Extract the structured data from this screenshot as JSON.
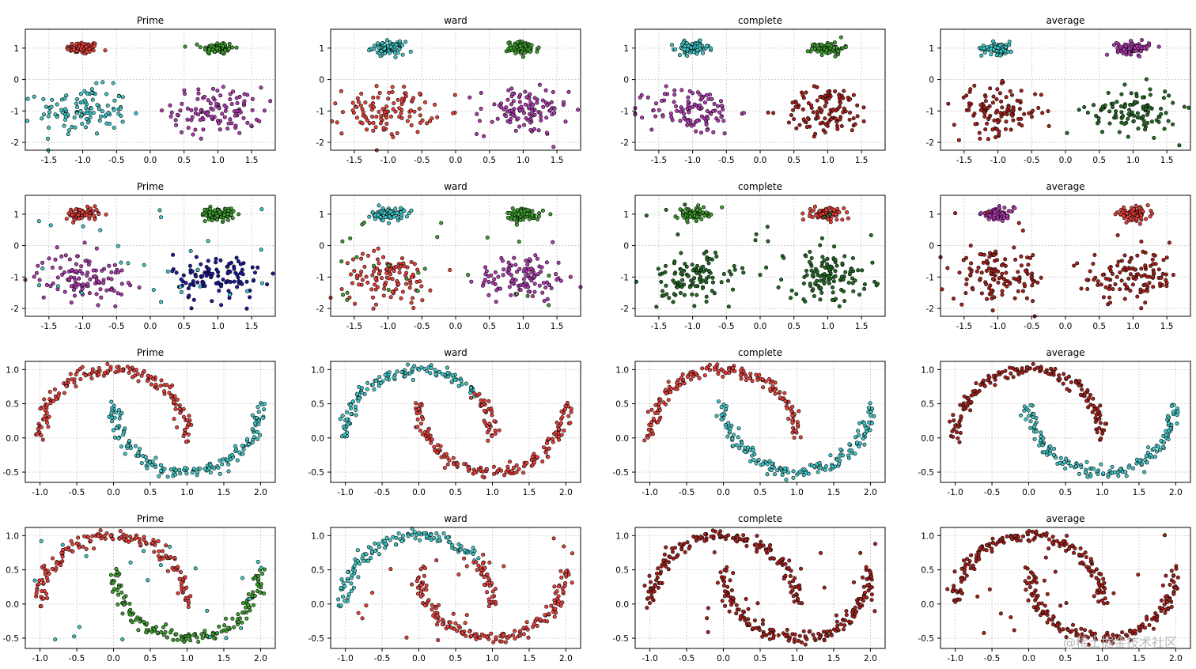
{
  "colors": {
    "red": "#e8403a",
    "green": "#3fa02f",
    "cyan": "#3fc7c7",
    "purple": "#b23ab2",
    "navy": "#1a1a9c",
    "darkred": "#a8201a",
    "darkgreen": "#236b23"
  },
  "watermark": "@稀土掘金技术社区",
  "chart_data": [
    {
      "type": "scatter",
      "title": "Prime",
      "dataset": "blobs",
      "noise": false,
      "xlim": [
        -1.85,
        1.85
      ],
      "ylim": [
        -2.25,
        1.6
      ],
      "xticks": [
        "-1.5",
        "-1.0",
        "-0.5",
        "0.0",
        "0.5",
        "1.0",
        "1.5"
      ],
      "yticks": [
        "1",
        "0",
        "-1",
        "-2"
      ],
      "grid": true,
      "clusters": [
        {
          "center": [
            -1.0,
            1.0
          ],
          "color": "red"
        },
        {
          "center": [
            1.0,
            1.0
          ],
          "color": "green"
        },
        {
          "center": [
            -1.0,
            -1.0
          ],
          "color": "cyan"
        },
        {
          "center": [
            1.0,
            -1.0
          ],
          "color": "purple"
        }
      ]
    },
    {
      "type": "scatter",
      "title": "ward",
      "dataset": "blobs",
      "noise": false,
      "xlim": [
        -1.85,
        1.85
      ],
      "ylim": [
        -2.25,
        1.6
      ],
      "xticks": [
        "-1.5",
        "-1.0",
        "-0.5",
        "0.0",
        "0.5",
        "1.0",
        "1.5"
      ],
      "yticks": [
        "1",
        "0",
        "-1",
        "-2"
      ],
      "grid": true,
      "clusters": [
        {
          "center": [
            -1.0,
            1.0
          ],
          "color": "cyan"
        },
        {
          "center": [
            1.0,
            1.0
          ],
          "color": "green"
        },
        {
          "center": [
            -1.0,
            -1.0
          ],
          "color": "red"
        },
        {
          "center": [
            1.0,
            -1.0
          ],
          "color": "purple"
        }
      ]
    },
    {
      "type": "scatter",
      "title": "complete",
      "dataset": "blobs",
      "noise": false,
      "xlim": [
        -1.85,
        1.85
      ],
      "ylim": [
        -2.25,
        1.6
      ],
      "xticks": [
        "-1.5",
        "-1.0",
        "-0.5",
        "0.0",
        "0.5",
        "1.0",
        "1.5"
      ],
      "yticks": [
        "1",
        "0",
        "-1",
        "-2"
      ],
      "grid": true,
      "clusters": [
        {
          "center": [
            -1.0,
            1.0
          ],
          "color": "cyan"
        },
        {
          "center": [
            1.0,
            1.0
          ],
          "color": "green"
        },
        {
          "center": [
            -1.0,
            -1.0
          ],
          "color": "purple"
        },
        {
          "center": [
            1.0,
            -1.0
          ],
          "color": "darkred"
        }
      ]
    },
    {
      "type": "scatter",
      "title": "average",
      "dataset": "blobs",
      "noise": false,
      "xlim": [
        -1.85,
        1.85
      ],
      "ylim": [
        -2.25,
        1.6
      ],
      "xticks": [
        "-1.5",
        "-1.0",
        "-0.5",
        "0.0",
        "0.5",
        "1.0",
        "1.5"
      ],
      "yticks": [
        "1",
        "0",
        "-1",
        "-2"
      ],
      "grid": true,
      "clusters": [
        {
          "center": [
            -1.0,
            1.0
          ],
          "color": "cyan"
        },
        {
          "center": [
            1.0,
            1.0
          ],
          "color": "purple"
        },
        {
          "center": [
            -1.0,
            -1.0
          ],
          "color": "darkred"
        },
        {
          "center": [
            1.0,
            -1.0
          ],
          "color": "darkgreen"
        }
      ]
    },
    {
      "type": "scatter",
      "title": "Prime",
      "dataset": "blobs",
      "noise": true,
      "noise_color": "cyan",
      "xlim": [
        -1.85,
        1.85
      ],
      "ylim": [
        -2.25,
        1.6
      ],
      "xticks": [
        "-1.5",
        "-1.0",
        "-0.5",
        "0.0",
        "0.5",
        "1.0",
        "1.5"
      ],
      "yticks": [
        "1",
        "0",
        "-1",
        "-2"
      ],
      "grid": true,
      "clusters": [
        {
          "center": [
            -1.0,
            1.0
          ],
          "color": "red"
        },
        {
          "center": [
            1.0,
            1.0
          ],
          "color": "green"
        },
        {
          "center": [
            -1.0,
            -1.0
          ],
          "color": "purple"
        },
        {
          "center": [
            1.0,
            -1.0
          ],
          "color": "navy"
        }
      ]
    },
    {
      "type": "scatter",
      "title": "ward",
      "dataset": "blobs",
      "noise": true,
      "noise_color": "green",
      "xlim": [
        -1.85,
        1.85
      ],
      "ylim": [
        -2.25,
        1.6
      ],
      "xticks": [
        "-1.5",
        "-1.0",
        "-0.5",
        "0.0",
        "0.5",
        "1.0",
        "1.5"
      ],
      "yticks": [
        "1",
        "0",
        "-1",
        "-2"
      ],
      "grid": true,
      "clusters": [
        {
          "center": [
            -1.0,
            1.0
          ],
          "color": "cyan"
        },
        {
          "center": [
            1.0,
            1.0
          ],
          "color": "green"
        },
        {
          "center": [
            -1.0,
            -1.0
          ],
          "color": "red"
        },
        {
          "center": [
            1.0,
            -1.0
          ],
          "color": "purple"
        }
      ]
    },
    {
      "type": "scatter",
      "title": "complete",
      "dataset": "blobs",
      "noise": true,
      "noise_color": "darkgreen",
      "xlim": [
        -1.85,
        1.85
      ],
      "ylim": [
        -2.25,
        1.6
      ],
      "xticks": [
        "-1.5",
        "-1.0",
        "-0.5",
        "0.0",
        "0.5",
        "1.0",
        "1.5"
      ],
      "yticks": [
        "1",
        "0",
        "-1",
        "-2"
      ],
      "grid": true,
      "clusters": [
        {
          "center": [
            -1.0,
            1.0
          ],
          "color": "green"
        },
        {
          "center": [
            1.0,
            1.0
          ],
          "color": "red"
        },
        {
          "center": [
            -1.0,
            -1.0
          ],
          "color": "darkgreen"
        },
        {
          "center": [
            1.0,
            -1.0
          ],
          "color": "darkgreen"
        }
      ]
    },
    {
      "type": "scatter",
      "title": "average",
      "dataset": "blobs",
      "noise": true,
      "noise_color": "darkred",
      "xlim": [
        -1.85,
        1.85
      ],
      "ylim": [
        -2.25,
        1.6
      ],
      "xticks": [
        "-1.5",
        "-1.0",
        "-0.5",
        "0.0",
        "0.5",
        "1.0",
        "1.5"
      ],
      "yticks": [
        "1",
        "0",
        "-1",
        "-2"
      ],
      "grid": true,
      "clusters": [
        {
          "center": [
            -1.0,
            1.0
          ],
          "color": "purple"
        },
        {
          "center": [
            1.0,
            1.0
          ],
          "color": "red"
        },
        {
          "center": [
            -1.0,
            -1.0
          ],
          "color": "darkred"
        },
        {
          "center": [
            1.0,
            -1.0
          ],
          "color": "darkred"
        }
      ]
    },
    {
      "type": "scatter",
      "title": "Prime",
      "dataset": "moons",
      "noise": false,
      "xlim": [
        -1.2,
        2.2
      ],
      "ylim": [
        -0.65,
        1.12
      ],
      "xticks": [
        "-1.0",
        "-0.5",
        "0.0",
        "0.5",
        "1.0",
        "1.5",
        "2.0"
      ],
      "yticks": [
        "1.0",
        "0.5",
        "0.0",
        "-0.5"
      ],
      "grid": true,
      "moons": [
        {
          "moon": "upper",
          "color": "red"
        },
        {
          "moon": "lower",
          "color": "cyan"
        }
      ]
    },
    {
      "type": "scatter",
      "title": "ward",
      "dataset": "moons",
      "noise": false,
      "xlim": [
        -1.2,
        2.2
      ],
      "ylim": [
        -0.65,
        1.12
      ],
      "xticks": [
        "-1.0",
        "-0.5",
        "0.0",
        "0.5",
        "1.0",
        "1.5",
        "2.0"
      ],
      "yticks": [
        "1.0",
        "0.5",
        "0.0",
        "-0.5"
      ],
      "grid": true,
      "moons": [
        {
          "moon": "upper-left",
          "color": "cyan"
        },
        {
          "moon": "upper-right",
          "color": "red"
        },
        {
          "moon": "lower",
          "color": "red"
        }
      ]
    },
    {
      "type": "scatter",
      "title": "complete",
      "dataset": "moons",
      "noise": false,
      "xlim": [
        -1.2,
        2.2
      ],
      "ylim": [
        -0.65,
        1.12
      ],
      "xticks": [
        "-1.0",
        "-0.5",
        "0.0",
        "0.5",
        "1.0",
        "1.5",
        "2.0"
      ],
      "yticks": [
        "1.0",
        "0.5",
        "0.0",
        "-0.5"
      ],
      "grid": true,
      "moons": [
        {
          "moon": "upper",
          "color": "red"
        },
        {
          "moon": "lower",
          "color": "cyan"
        }
      ]
    },
    {
      "type": "scatter",
      "title": "average",
      "dataset": "moons",
      "noise": false,
      "xlim": [
        -1.2,
        2.2
      ],
      "ylim": [
        -0.65,
        1.12
      ],
      "xticks": [
        "-1.0",
        "-0.5",
        "0.0",
        "0.5",
        "1.0",
        "1.5",
        "2.0"
      ],
      "yticks": [
        "1.0",
        "0.5",
        "0.0",
        "-0.5"
      ],
      "grid": true,
      "moons": [
        {
          "moon": "upper",
          "color": "darkred"
        },
        {
          "moon": "lower",
          "color": "cyan"
        }
      ]
    },
    {
      "type": "scatter",
      "title": "Prime",
      "dataset": "moons",
      "noise": true,
      "noise_color": "cyan",
      "xlim": [
        -1.2,
        2.2
      ],
      "ylim": [
        -0.65,
        1.12
      ],
      "xticks": [
        "-1.0",
        "-0.5",
        "0.0",
        "0.5",
        "1.0",
        "1.5",
        "2.0"
      ],
      "yticks": [
        "1.0",
        "0.5",
        "0.0",
        "-0.5"
      ],
      "grid": true,
      "moons": [
        {
          "moon": "upper",
          "color": "red"
        },
        {
          "moon": "lower",
          "color": "green"
        }
      ]
    },
    {
      "type": "scatter",
      "title": "ward",
      "dataset": "moons",
      "noise": true,
      "noise_color": "red",
      "xlim": [
        -1.2,
        2.2
      ],
      "ylim": [
        -0.65,
        1.12
      ],
      "xticks": [
        "-1.0",
        "-0.5",
        "0.0",
        "0.5",
        "1.0",
        "1.5",
        "2.0"
      ],
      "yticks": [
        "1.0",
        "0.5",
        "0.0",
        "-0.5"
      ],
      "grid": true,
      "moons": [
        {
          "moon": "upper-left",
          "color": "cyan"
        },
        {
          "moon": "upper-right",
          "color": "red"
        },
        {
          "moon": "lower",
          "color": "red"
        }
      ]
    },
    {
      "type": "scatter",
      "title": "complete",
      "dataset": "moons",
      "noise": true,
      "noise_color": "darkred",
      "xlim": [
        -1.2,
        2.2
      ],
      "ylim": [
        -0.65,
        1.12
      ],
      "xticks": [
        "-1.0",
        "-0.5",
        "0.0",
        "0.5",
        "1.0",
        "1.5",
        "2.0"
      ],
      "yticks": [
        "1.0",
        "0.5",
        "0.0",
        "-0.5"
      ],
      "grid": true,
      "moons": [
        {
          "moon": "upper",
          "color": "darkred"
        },
        {
          "moon": "lower",
          "color": "darkred"
        }
      ]
    },
    {
      "type": "scatter",
      "title": "average",
      "dataset": "moons",
      "noise": true,
      "noise_color": "darkred",
      "xlim": [
        -1.2,
        2.2
      ],
      "ylim": [
        -0.65,
        1.12
      ],
      "xticks": [
        "-1.0",
        "-0.5",
        "0.0",
        "0.5",
        "1.0",
        "1.5",
        "2.0"
      ],
      "yticks": [
        "1.0",
        "0.5",
        "0.0",
        "-0.5"
      ],
      "grid": true,
      "moons": [
        {
          "moon": "upper",
          "color": "darkred"
        },
        {
          "moon": "lower",
          "color": "darkred"
        }
      ]
    }
  ]
}
